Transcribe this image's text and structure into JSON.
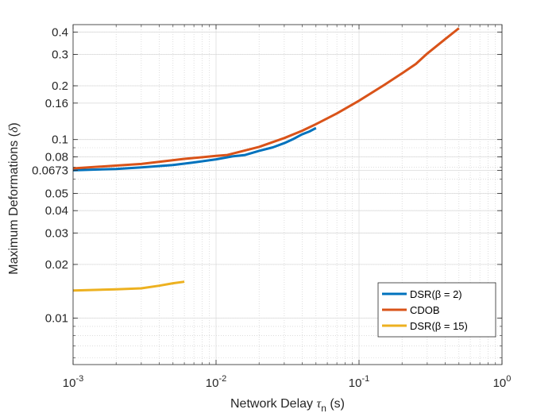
{
  "chart_data": {
    "type": "line",
    "xlabel": "Network Delay τn (s)",
    "ylabel": "Maximum Deformations (δ)",
    "xscale": "log",
    "yscale": "log",
    "xlim": [
      0.001,
      1
    ],
    "ylim": [
      0.0055,
      0.44
    ],
    "grid": true,
    "minor_grid": true,
    "legend_position": "bottom-right",
    "x_ticks": [
      {
        "value": 0.001,
        "label": "10",
        "exp": "-3"
      },
      {
        "value": 0.01,
        "label": "10",
        "exp": "-2"
      },
      {
        "value": 0.1,
        "label": "10",
        "exp": "-1"
      },
      {
        "value": 1,
        "label": "10",
        "exp": "0"
      }
    ],
    "y_ticks": [
      {
        "value": 0.01,
        "label": "0.01"
      },
      {
        "value": 0.02,
        "label": "0.02"
      },
      {
        "value": 0.03,
        "label": "0.03"
      },
      {
        "value": 0.04,
        "label": "0.04"
      },
      {
        "value": 0.05,
        "label": "0.05"
      },
      {
        "value": 0.0673,
        "label": "0.0673"
      },
      {
        "value": 0.08,
        "label": "0.08"
      },
      {
        "value": 0.1,
        "label": "0.1"
      },
      {
        "value": 0.16,
        "label": "0.16"
      },
      {
        "value": 0.2,
        "label": "0.2"
      },
      {
        "value": 0.3,
        "label": "0.3"
      },
      {
        "value": 0.4,
        "label": "0.4"
      }
    ],
    "series": [
      {
        "name": "DSR(β = 2)",
        "color": "#0072BD",
        "x": [
          0.001,
          0.002,
          0.003,
          0.005,
          0.007,
          0.01,
          0.013,
          0.016,
          0.02,
          0.025,
          0.03,
          0.035,
          0.04,
          0.045,
          0.05
        ],
        "y": [
          0.0673,
          0.0685,
          0.0698,
          0.072,
          0.0745,
          0.0775,
          0.0805,
          0.082,
          0.0865,
          0.0905,
          0.0955,
          0.101,
          0.107,
          0.111,
          0.116
        ]
      },
      {
        "name": "CDOB",
        "color": "#D95319",
        "x": [
          0.001,
          0.003,
          0.006,
          0.01,
          0.012,
          0.02,
          0.03,
          0.04,
          0.05,
          0.07,
          0.1,
          0.15,
          0.2,
          0.25,
          0.3,
          0.4,
          0.5
        ],
        "y": [
          0.069,
          0.073,
          0.078,
          0.081,
          0.082,
          0.091,
          0.102,
          0.112,
          0.122,
          0.14,
          0.165,
          0.202,
          0.235,
          0.265,
          0.303,
          0.365,
          0.42
        ]
      },
      {
        "name": "DSR(β = 15)",
        "color": "#EDB120",
        "x": [
          0.001,
          0.002,
          0.003,
          0.004,
          0.005,
          0.006
        ],
        "y": [
          0.0143,
          0.0145,
          0.0147,
          0.0152,
          0.0157,
          0.016
        ]
      }
    ]
  }
}
